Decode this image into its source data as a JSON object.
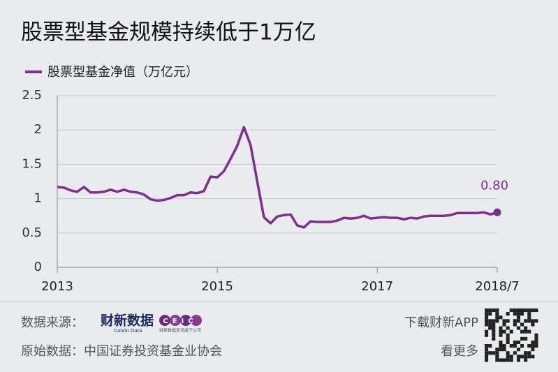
{
  "chart_data": {
    "type": "line",
    "title": "股票型基金规模持续低于1万亿",
    "x": [
      0,
      1,
      2,
      3,
      4,
      5,
      6,
      7,
      8,
      9,
      10,
      11,
      12,
      13,
      14,
      15,
      16,
      17,
      18,
      19,
      20,
      21,
      22,
      23,
      24,
      25,
      26,
      27,
      28,
      29,
      30,
      31,
      32,
      33,
      34,
      35,
      36,
      37,
      38,
      39,
      40,
      41,
      42,
      43,
      44,
      45,
      46,
      47,
      48,
      49,
      50,
      51,
      52,
      53,
      54,
      55,
      56,
      57,
      58,
      59,
      60,
      61,
      62,
      63,
      64,
      65,
      66
    ],
    "series": [
      {
        "name": "股票型基金净值（万亿元）",
        "color": "#7d2f8c",
        "values": [
          1.17,
          1.16,
          1.12,
          1.1,
          1.17,
          1.09,
          1.09,
          1.1,
          1.13,
          1.1,
          1.13,
          1.1,
          1.09,
          1.06,
          0.99,
          0.97,
          0.98,
          1.01,
          1.05,
          1.05,
          1.09,
          1.08,
          1.11,
          1.32,
          1.31,
          1.4,
          1.58,
          1.77,
          2.04,
          1.78,
          1.25,
          0.73,
          0.64,
          0.74,
          0.76,
          0.77,
          0.61,
          0.58,
          0.67,
          0.66,
          0.66,
          0.66,
          0.68,
          0.72,
          0.71,
          0.72,
          0.75,
          0.71,
          0.72,
          0.73,
          0.72,
          0.72,
          0.7,
          0.72,
          0.71,
          0.74,
          0.75,
          0.75,
          0.75,
          0.76,
          0.79,
          0.79,
          0.79,
          0.79,
          0.8,
          0.77,
          0.8
        ],
        "value_labels": [
          null,
          null,
          null,
          null,
          null,
          null,
          null,
          null,
          null,
          null,
          null,
          null,
          null,
          null,
          null,
          null,
          null,
          null,
          null,
          null,
          null,
          null,
          null,
          null,
          null,
          null,
          null,
          null,
          null,
          null,
          null,
          null,
          null,
          null,
          null,
          null,
          null,
          null,
          null,
          null,
          null,
          null,
          null,
          null,
          null,
          null,
          null,
          null,
          null,
          null,
          null,
          null,
          null,
          null,
          null,
          null,
          null,
          null,
          null,
          null,
          null,
          null,
          null,
          null,
          null,
          null,
          "0.80"
        ]
      }
    ],
    "xlim": [
      0,
      66
    ],
    "xticks": [
      {
        "value": 0,
        "label": "2013"
      },
      {
        "value": 24,
        "label": "2015"
      },
      {
        "value": 48,
        "label": "2017"
      },
      {
        "value": 66,
        "label": "2018/7"
      }
    ],
    "ylim": [
      0,
      2.5
    ],
    "yticks": [
      0,
      0.5,
      1,
      1.5,
      2,
      2.5
    ],
    "grid": true
  },
  "footer": {
    "source_label": "数据来源：",
    "logo1": "财新数据",
    "logo1_sub": "Caixin Data",
    "logo2": "CEIC",
    "logo2_sub": "财新数据资讯旗下公司",
    "original_label": "原始数据：中国证券投资基金业协会",
    "download": "下载财新APP",
    "more": "看更多"
  }
}
